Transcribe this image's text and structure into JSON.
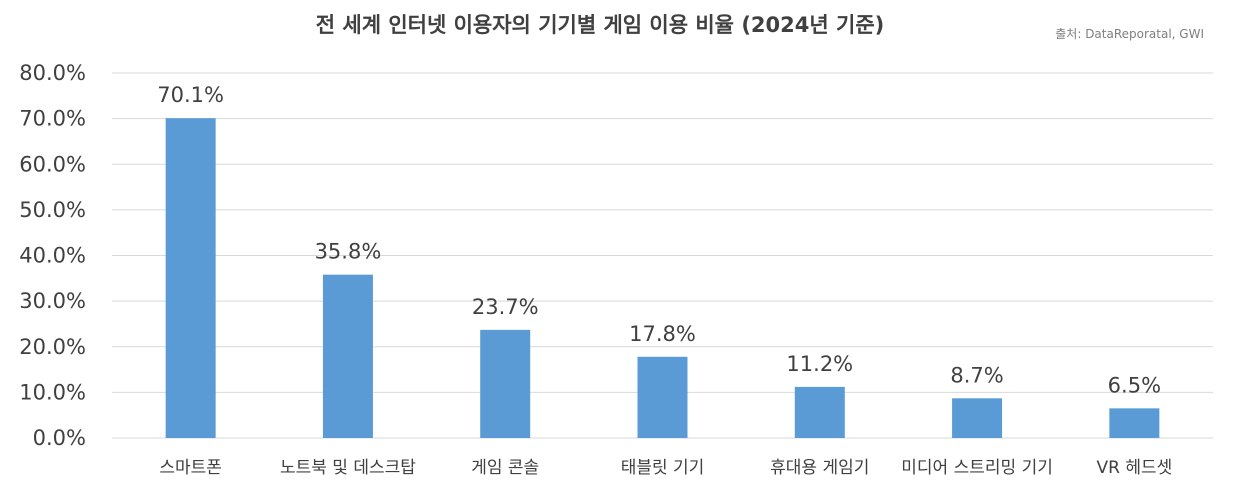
{
  "chart_data": {
    "type": "bar",
    "title": "전 세계 인터넷 이용자의 기기별 게임 이용 비율 (2024년 기준)",
    "source": "출처: DataReporatal, GWI",
    "categories": [
      "스마트폰",
      "노트북 및 데스크탑",
      "게임 콘솔",
      "태블릿 기기",
      "휴대용 게임기",
      "미디어 스트리밍 기기",
      "VR 헤드셋"
    ],
    "values": [
      70.1,
      35.8,
      23.7,
      17.8,
      11.2,
      8.7,
      6.5
    ],
    "data_labels": [
      "70.1%",
      "35.8%",
      "23.7%",
      "17.8%",
      "11.2%",
      "8.7%",
      "6.5%"
    ],
    "ylim": [
      0,
      80
    ],
    "yticks": [
      "0.0%",
      "10.0%",
      "20.0%",
      "30.0%",
      "40.0%",
      "50.0%",
      "60.0%",
      "70.0%",
      "80.0%"
    ],
    "bar_color": "#5b9bd5",
    "grid": true,
    "legend": "none"
  }
}
